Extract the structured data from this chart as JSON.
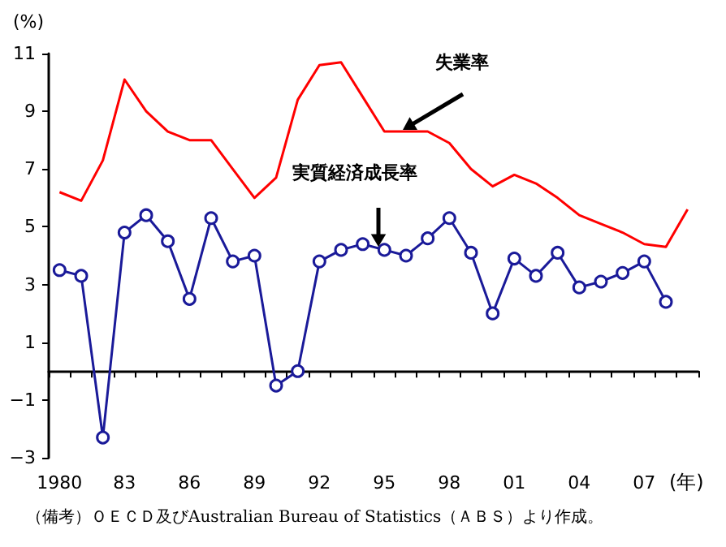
{
  "chart_data": {
    "type": "line",
    "ylabel": "(%)",
    "xlabel": "(年)",
    "categories": [
      "1980",
      null,
      null,
      "83",
      null,
      null,
      "86",
      null,
      null,
      "89",
      null,
      null,
      "92",
      null,
      null,
      "95",
      null,
      null,
      "98",
      null,
      null,
      "01",
      null,
      null,
      "04",
      null,
      null,
      "07",
      null,
      null
    ],
    "series": [
      {
        "color": "#ff0000",
        "marker": "none",
        "values": [
          6.2,
          5.9,
          7.3,
          10.1,
          9.0,
          8.3,
          8.0,
          8.0,
          7.0,
          6.0,
          6.7,
          9.4,
          10.6,
          10.7,
          9.5,
          8.3,
          8.3,
          8.3,
          7.9,
          7.0,
          6.4,
          6.8,
          6.5,
          6.0,
          5.4,
          5.1,
          4.8,
          4.4,
          4.3,
          5.6
        ]
      },
      {
        "color": "#1a1a99",
        "marker": "circle",
        "values": [
          3.5,
          3.3,
          -2.3,
          4.8,
          5.4,
          4.5,
          2.5,
          5.3,
          3.8,
          4.0,
          -0.5,
          0.0,
          3.8,
          4.2,
          4.4,
          4.2,
          4.0,
          4.6,
          5.3,
          4.1,
          2.0,
          3.9,
          3.3,
          4.1,
          2.9,
          3.1,
          3.4,
          3.8,
          2.4,
          null
        ]
      }
    ],
    "ylim": [
      -3,
      11
    ],
    "yticks": [
      -3,
      -1,
      1,
      3,
      5,
      7,
      9,
      11
    ],
    "grid": false,
    "annotations": [
      "失業率",
      "実質経済成長率",
      "（備考）ＯＥＣＤ及びAustralian Bureau of Statistics（ＡＢＳ）より作成。"
    ]
  }
}
